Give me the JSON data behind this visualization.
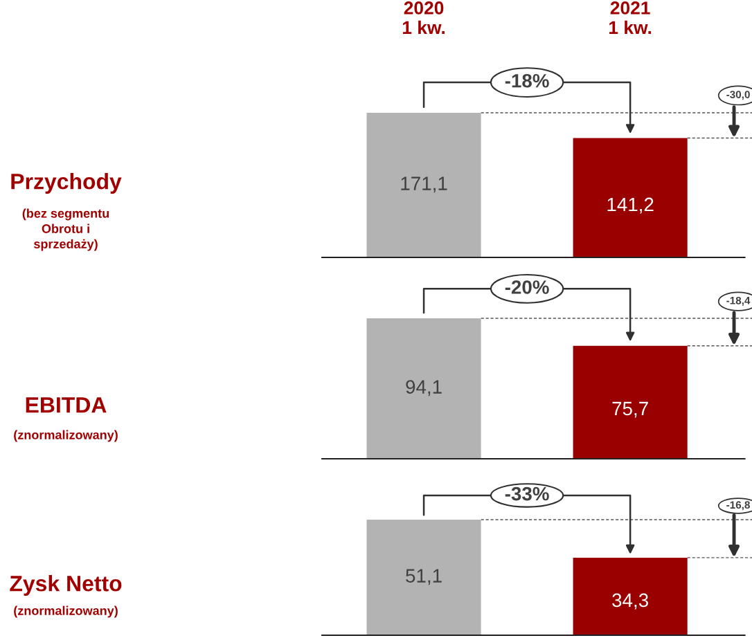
{
  "chart_data": [
    {
      "type": "bar",
      "ylabel": "Przychody",
      "categories": [
        "2020\n1 kw.",
        "2021\n1 kw."
      ],
      "values": [
        171.1,
        141.2
      ],
      "colors": [
        "#b3b3b3",
        "#990000"
      ],
      "value_labels": [
        "171,1",
        "141,2"
      ],
      "annotations": [
        "-18%",
        "-30,0",
        "(bez segmentu\nObrotu i\nsprzedaży)"
      ],
      "tick_labels": "x"
    },
    {
      "type": "bar",
      "ylabel": "EBITDA",
      "values": [
        94.1,
        75.7
      ],
      "colors": [
        "#b3b3b3",
        "#990000"
      ],
      "value_labels": [
        "94,1",
        "75,7"
      ],
      "annotations": [
        "-20%",
        "-18,4",
        "(znormalizowany)"
      ],
      "tick_labels": false
    },
    {
      "type": "bar",
      "ylabel": "Zysk Netto",
      "values": [
        51.1,
        34.3
      ],
      "colors": [
        "#b3b3b3",
        "#990000"
      ],
      "value_labels": [
        "51,1",
        "34,3"
      ],
      "annotations": [
        "-33%",
        "-16,8",
        "(znormalizowany)"
      ],
      "tick_labels": false
    }
  ]
}
